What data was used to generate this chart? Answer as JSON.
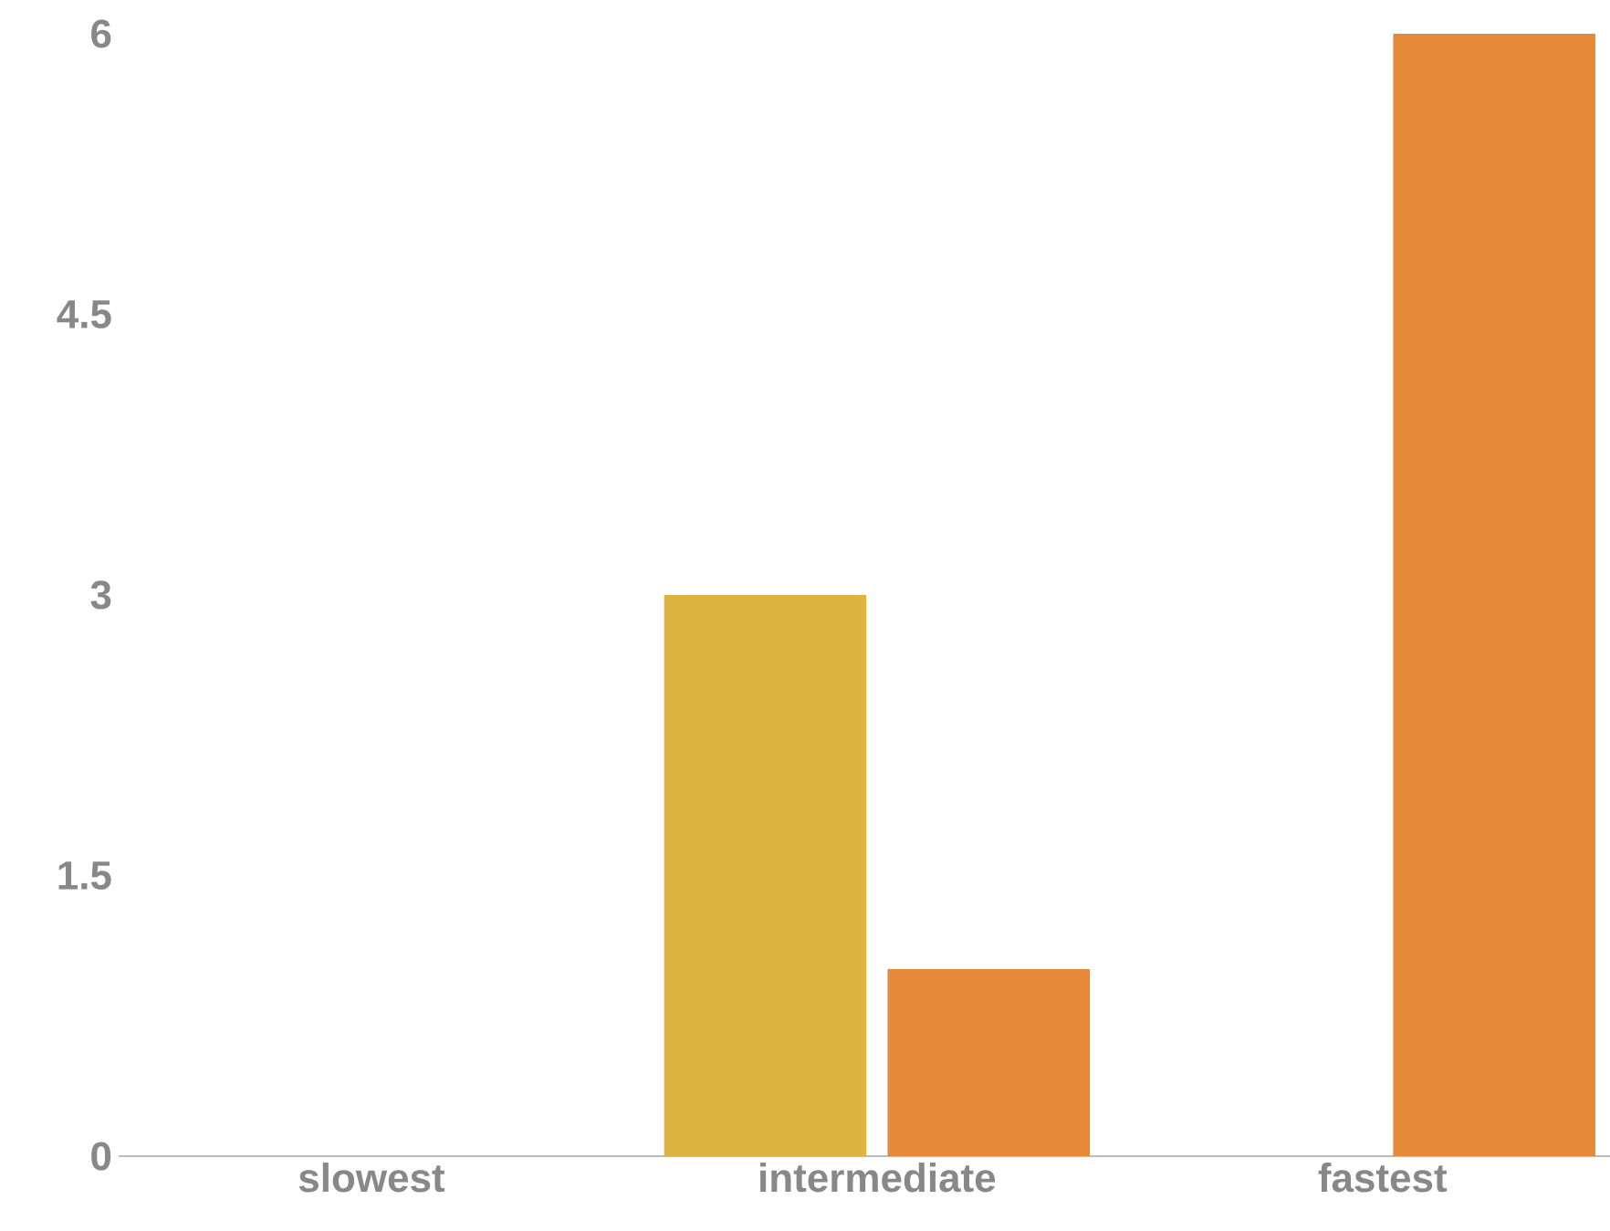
{
  "chart_data": {
    "type": "bar",
    "categories": [
      "slowest",
      "intermediate",
      "fastest"
    ],
    "series": [
      {
        "color": "#dcb540",
        "values": [
          null,
          3,
          null
        ]
      },
      {
        "color": "#e68a3a",
        "values": [
          null,
          1,
          6
        ]
      }
    ],
    "ylim": [
      0,
      6
    ],
    "yticks": [
      0,
      1.5,
      3,
      4.5,
      6
    ]
  }
}
